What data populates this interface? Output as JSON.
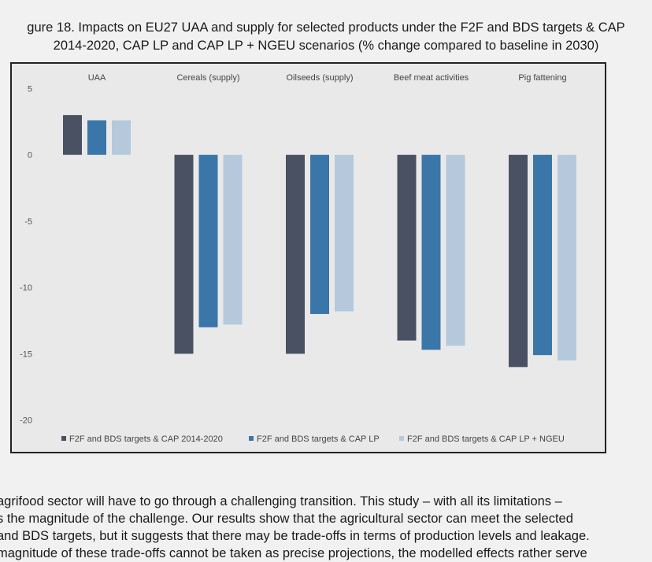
{
  "caption": {
    "line1": "gure 18. Impacts on EU27 UAA and supply for selected products under the F2F and BDS targets & CAP",
    "line2": "2014-2020, CAP LP and CAP LP + NGEU scenarios (% change compared to baseline in 2030)"
  },
  "chart_data": {
    "type": "bar",
    "title": "",
    "xlabel": "",
    "ylabel": "",
    "categories": [
      "UAA",
      "Cereals (supply)",
      "Oilseeds (supply)",
      "Beef meat activities",
      "Pig fattening"
    ],
    "series": [
      {
        "name": "F2F and BDS targets & CAP 2014-2020",
        "color": "#4a5162",
        "values": [
          3.0,
          -15.0,
          -15.0,
          -14.0,
          -16.0
        ]
      },
      {
        "name": "F2F and BDS targets & CAP LP",
        "color": "#3a76a8",
        "values": [
          2.6,
          -13.0,
          -12.0,
          -14.7,
          -15.1
        ]
      },
      {
        "name": "F2F and BDS targets & CAP LP + NGEU",
        "color": "#b6c9dc",
        "values": [
          2.6,
          -12.8,
          -11.8,
          -14.4,
          -15.5
        ]
      }
    ],
    "yticks": [
      5,
      0,
      -5,
      -10,
      -15,
      -20
    ],
    "ylim": [
      -21.5,
      5.8
    ],
    "grid": false,
    "legend_position": "bottom"
  },
  "body": {
    "lines": [
      "agrifood sector will have to go through a challenging transition. This study – with all its limitations –",
      "s the magnitude of the challenge. Our results show that the agricultural sector can meet the selected",
      "and BDS targets, but it suggests that there may be trade-offs in terms of production levels and leakage.",
      "magnitude of these trade-offs cannot be taken as precise projections, the modelled effects rather serve"
    ]
  }
}
